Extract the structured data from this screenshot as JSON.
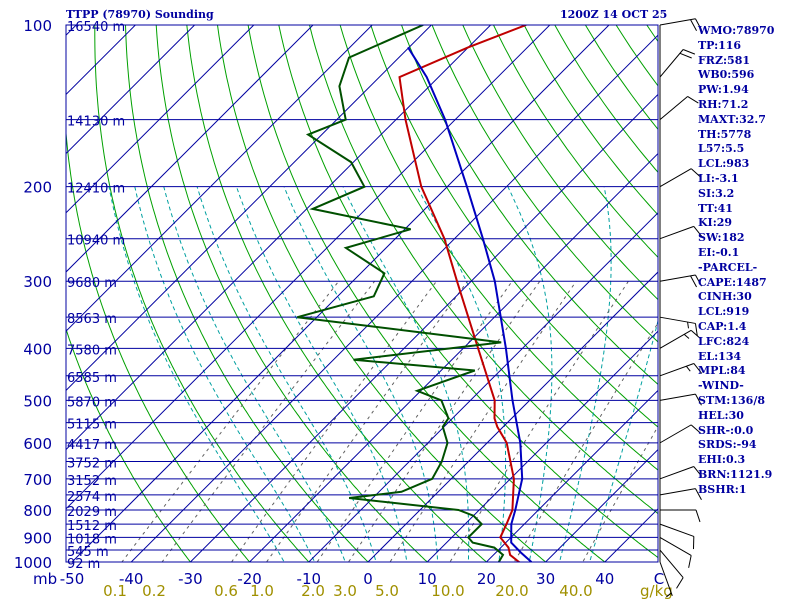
{
  "header": {
    "title": "TTPP (78970) Sounding",
    "datetime": "1200Z 14 OCT 25"
  },
  "indices": [
    "WMO:78970",
    "TP:116",
    "FRZ:581",
    "WB0:596",
    "PW:1.94",
    "RH:71.2",
    "MAXT:32.7",
    "TH:5778",
    "L57:5.5",
    "LCL:983",
    "LI:-3.1",
    "SI:3.2",
    "TT:41",
    "KI:29",
    "SW:182",
    "EI:-0.1",
    "-PARCEL-",
    "CAPE:1487",
    "CINH:30",
    "LCL:919",
    "CAP:1.4",
    "LFC:824",
    "EL:134",
    "MPL:84",
    "-WIND-",
    "STM:136/8",
    "HEL:30",
    "SHR-:0.0",
    "SRDS:-94",
    "EHI:0.3",
    "BRN:1121.9",
    "BSHR:1"
  ],
  "colors": {
    "grid": "#0000a0",
    "label": "#0000a0",
    "dry_adiabat": "#00a000",
    "moist_adiabat": "#00a0a0",
    "mixing_ratio": "#606060",
    "temperature": "#c00000",
    "dewpoint": "#005000",
    "parcel": "#0000c0",
    "mixing_ratio_label": "#a09000",
    "wind_barb": "#000000"
  },
  "chart_data": {
    "type": "line",
    "title": "TTPP (78970) Sounding",
    "subtitle": "1200Z 14 OCT 25",
    "xlabel": "",
    "ylabel": "mb",
    "x_units": "°C",
    "y_scale": "log",
    "ylim": [
      1000,
      100
    ],
    "xlim_bottom": [
      -50,
      50
    ],
    "skew": "temperature isotherms skewed 45°",
    "pressure_ticks": [
      100,
      200,
      300,
      400,
      500,
      600,
      700,
      800,
      900,
      1000
    ],
    "height_labels": [
      {
        "p": 100,
        "label": "16540 m"
      },
      {
        "p": 150,
        "label": "14130 m"
      },
      {
        "p": 200,
        "label": "12410 m"
      },
      {
        "p": 250,
        "label": "10940 m"
      },
      {
        "p": 300,
        "label": "9680 m"
      },
      {
        "p": 350,
        "label": "8563 m"
      },
      {
        "p": 400,
        "label": "7580 m"
      },
      {
        "p": 450,
        "label": "6585 m"
      },
      {
        "p": 500,
        "label": "5870 m"
      },
      {
        "p": 550,
        "label": "5115 m"
      },
      {
        "p": 600,
        "label": "4417 m"
      },
      {
        "p": 650,
        "label": "3752 m"
      },
      {
        "p": 700,
        "label": "3152 m"
      },
      {
        "p": 750,
        "label": "2574 m"
      },
      {
        "p": 800,
        "label": "2029 m"
      },
      {
        "p": 850,
        "label": "1512 m"
      },
      {
        "p": 900,
        "label": "1018 m"
      },
      {
        "p": 950,
        "label": "545 m"
      },
      {
        "p": 1000,
        "label": "92 m"
      }
    ],
    "temp_ticks": [
      -50,
      -40,
      -30,
      -20,
      -10,
      0,
      10,
      20,
      30,
      40
    ],
    "temp_tick_labels": [
      "-50",
      "-40",
      "-30",
      "-20",
      "-10",
      "0",
      "10",
      "20",
      "30",
      "40"
    ],
    "corner_label": "mb",
    "right_axis_letter": "C",
    "mixing_ratio_labels": [
      "0.1",
      "0.2",
      "0.6",
      "1.0",
      "2.0",
      "3.0",
      "5.0",
      "10.0",
      "20.0",
      "40.0"
    ],
    "mixing_ratio_unit": "g/kg",
    "mixing_ratio_lines": [
      0.1,
      0.2,
      0.6,
      1,
      2,
      3,
      5,
      10,
      20,
      40
    ],
    "series": [
      {
        "id": "temperature",
        "points": [
          {
            "p": 1010,
            "t": 26.5
          },
          {
            "p": 1000,
            "t": 25.5
          },
          {
            "p": 970,
            "t": 22.8
          },
          {
            "p": 940,
            "t": 21.3
          },
          {
            "p": 900,
            "t": 18.2
          },
          {
            "p": 850,
            "t": 17.0
          },
          {
            "p": 800,
            "t": 15.6
          },
          {
            "p": 700,
            "t": 10.6
          },
          {
            "p": 600,
            "t": 3.3
          },
          {
            "p": 560,
            "t": -1.0
          },
          {
            "p": 540,
            "t": -2.9
          },
          {
            "p": 500,
            "t": -5.9
          },
          {
            "p": 400,
            "t": -17.5
          },
          {
            "p": 300,
            "t": -32.4
          },
          {
            "p": 250,
            "t": -41.7
          },
          {
            "p": 200,
            "t": -54.4
          },
          {
            "p": 150,
            "t": -68.4
          },
          {
            "p": 125,
            "t": -76.6
          },
          {
            "p": 110,
            "t": -70.0
          },
          {
            "p": 100,
            "t": -64.0
          }
        ]
      },
      {
        "id": "dewpoint",
        "points": [
          {
            "p": 1005,
            "t": 22.6
          },
          {
            "p": 1000,
            "t": 22.1
          },
          {
            "p": 970,
            "t": 21.6
          },
          {
            "p": 940,
            "t": 18.9
          },
          {
            "p": 920,
            "t": 14.4
          },
          {
            "p": 900,
            "t": 12.8
          },
          {
            "p": 850,
            "t": 12.8
          },
          {
            "p": 820,
            "t": 10.0
          },
          {
            "p": 800,
            "t": 6.5
          },
          {
            "p": 760,
            "t": -14.0
          },
          {
            "p": 740,
            "t": -6.2
          },
          {
            "p": 700,
            "t": -3.2
          },
          {
            "p": 650,
            "t": -4.5
          },
          {
            "p": 600,
            "t": -6.7
          },
          {
            "p": 560,
            "t": -10.2
          },
          {
            "p": 540,
            "t": -10.7
          },
          {
            "p": 500,
            "t": -14.9
          },
          {
            "p": 480,
            "t": -20.6
          },
          {
            "p": 440,
            "t": -14.3
          },
          {
            "p": 420,
            "t": -36.6
          },
          {
            "p": 390,
            "t": -14.6
          },
          {
            "p": 350,
            "t": -53.3
          },
          {
            "p": 320,
            "t": -43.9
          },
          {
            "p": 290,
            "t": -46.0
          },
          {
            "p": 260,
            "t": -56.8
          },
          {
            "p": 240,
            "t": -49.0
          },
          {
            "p": 220,
            "t": -69.0
          },
          {
            "p": 200,
            "t": -64.0
          },
          {
            "p": 180,
            "t": -70.4
          },
          {
            "p": 160,
            "t": -82.3
          },
          {
            "p": 150,
            "t": -78.5
          },
          {
            "p": 130,
            "t": -85.2
          },
          {
            "p": 115,
            "t": -88.4
          },
          {
            "p": 100,
            "t": -81.4
          }
        ]
      },
      {
        "id": "parcel",
        "points": [
          {
            "p": 1000,
            "t": 27.6
          },
          {
            "p": 960,
            "t": 24.2
          },
          {
            "p": 920,
            "t": 20.9
          },
          {
            "p": 850,
            "t": 17.8
          },
          {
            "p": 800,
            "t": 16.1
          },
          {
            "p": 700,
            "t": 12.0
          },
          {
            "p": 600,
            "t": 5.6
          },
          {
            "p": 500,
            "t": -2.9
          },
          {
            "p": 400,
            "t": -12.8
          },
          {
            "p": 300,
            "t": -26.0
          },
          {
            "p": 250,
            "t": -35.2
          },
          {
            "p": 200,
            "t": -46.7
          },
          {
            "p": 150,
            "t": -61.7
          },
          {
            "p": 125,
            "t": -72.0
          },
          {
            "p": 110,
            "t": -80.2
          }
        ]
      }
    ],
    "wind_barbs": [
      {
        "p": 1000,
        "dir": 160,
        "spd": 5
      },
      {
        "p": 950,
        "dir": 140,
        "spd": 10
      },
      {
        "p": 900,
        "dir": 120,
        "spd": 10
      },
      {
        "p": 850,
        "dir": 110,
        "spd": 10
      },
      {
        "p": 800,
        "dir": 90,
        "spd": 10
      },
      {
        "p": 750,
        "dir": 80,
        "spd": 10
      },
      {
        "p": 700,
        "dir": 70,
        "spd": 10
      },
      {
        "p": 600,
        "dir": 60,
        "spd": 10
      },
      {
        "p": 500,
        "dir": 80,
        "spd": 10
      },
      {
        "p": 450,
        "dir": 70,
        "spd": 15
      },
      {
        "p": 400,
        "dir": 60,
        "spd": 15
      },
      {
        "p": 350,
        "dir": 100,
        "spd": 15
      },
      {
        "p": 300,
        "dir": 80,
        "spd": 20
      },
      {
        "p": 250,
        "dir": 70,
        "spd": 10
      },
      {
        "p": 200,
        "dir": 60,
        "spd": 10
      },
      {
        "p": 150,
        "dir": 50,
        "spd": 10
      },
      {
        "p": 125,
        "dir": 40,
        "spd": 20
      },
      {
        "p": 100,
        "dir": 80,
        "spd": 20
      }
    ]
  }
}
